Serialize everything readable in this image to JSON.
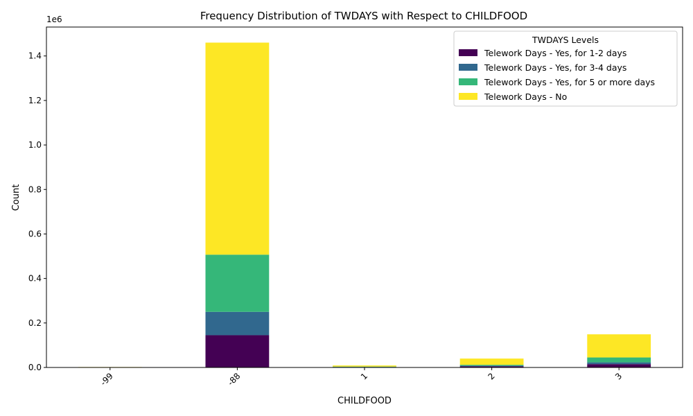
{
  "chart_data": {
    "type": "bar",
    "stacked": true,
    "title": "Frequency Distribution of TWDAYS with Respect to CHILDFOOD",
    "xlabel": "CHILDFOOD",
    "ylabel": "Count",
    "y_scale_label": "1e6",
    "categories": [
      "-99",
      "-88",
      "1",
      "2",
      "3"
    ],
    "ylim": [
      0,
      1530000
    ],
    "yticks": [
      0,
      200000,
      400000,
      600000,
      800000,
      1000000,
      1200000,
      1400000
    ],
    "ytick_labels": [
      "0.0",
      "0.2",
      "0.4",
      "0.6",
      "0.8",
      "1.0",
      "1.2",
      "1.4"
    ],
    "legend_title": "TWDAYS Levels",
    "legend_position": "top-right",
    "series": [
      {
        "name": "Telework Days - Yes, for 1-2 days",
        "color": "#440154",
        "values": [
          300,
          145000,
          1500,
          5000,
          15000
        ]
      },
      {
        "name": "Telework Days - Yes, for 3-4 days",
        "color": "#31688e",
        "values": [
          200,
          105000,
          1000,
          3000,
          8000
        ]
      },
      {
        "name": "Telework Days - Yes, for 5 or more days",
        "color": "#35b779",
        "values": [
          300,
          257000,
          1500,
          4000,
          22000
        ]
      },
      {
        "name": "Telework Days - No",
        "color": "#fde725",
        "values": [
          1200,
          953000,
          5000,
          28000,
          104000
        ]
      }
    ]
  }
}
